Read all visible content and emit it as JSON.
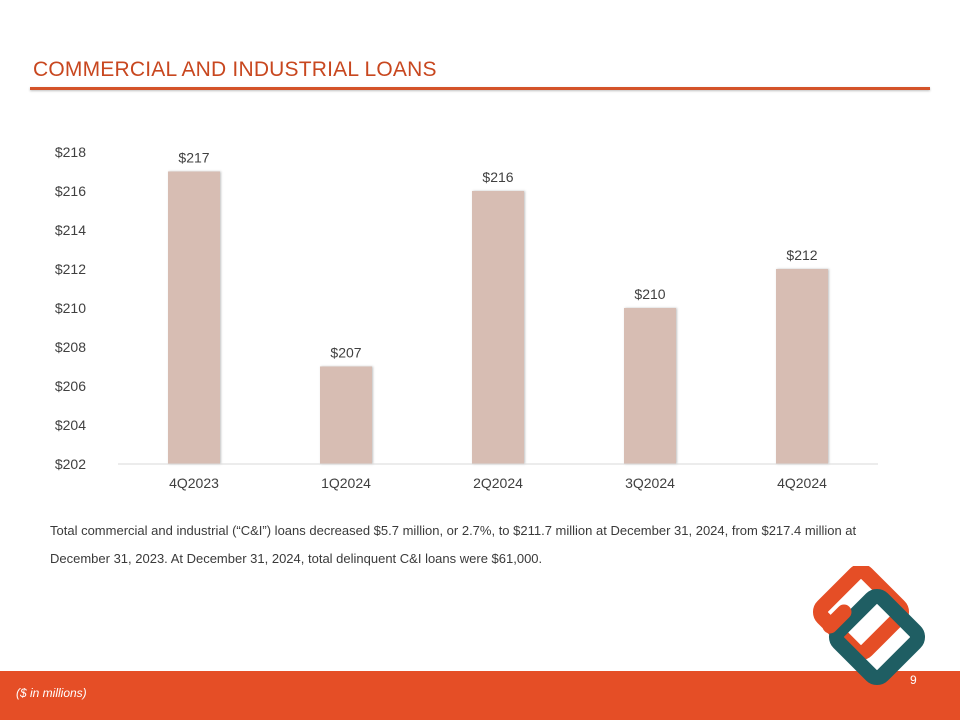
{
  "slide": {
    "title": "COMMERCIAL AND INDUSTRIAL LOANS",
    "commentary": "Total commercial and industrial (“C&I”) loans decreased $5.7 million, or 2.7%, to $211.7 million at December 31, 2024, from $217.4 million at December 31, 2023. At December 31, 2024, total delinquent C&I loans were $61,000.",
    "footnote": "($ in millions)",
    "page_number": "9",
    "logo_icon": "interlocked-diamonds-logo-icon"
  },
  "colors": {
    "accent": "#e54e26",
    "title": "#c8471f",
    "bar": "#d7bdb3",
    "logo_orange": "#e54e26",
    "logo_teal": "#1f5e63"
  },
  "chart_data": {
    "type": "bar",
    "title": "",
    "xlabel": "",
    "ylabel": "",
    "categories": [
      "4Q2023",
      "1Q2024",
      "2Q2024",
      "3Q2024",
      "4Q2024"
    ],
    "values": [
      217,
      207,
      216,
      210,
      212
    ],
    "value_labels": [
      "$217",
      "$207",
      "$216",
      "$210",
      "$212"
    ],
    "ylim": [
      202,
      218
    ],
    "yticks": [
      202,
      204,
      206,
      208,
      210,
      212,
      214,
      216,
      218
    ],
    "ytick_labels": [
      "$202",
      "$204",
      "$206",
      "$208",
      "$210",
      "$212",
      "$214",
      "$216",
      "$218"
    ],
    "grid": false,
    "legend": "none"
  }
}
